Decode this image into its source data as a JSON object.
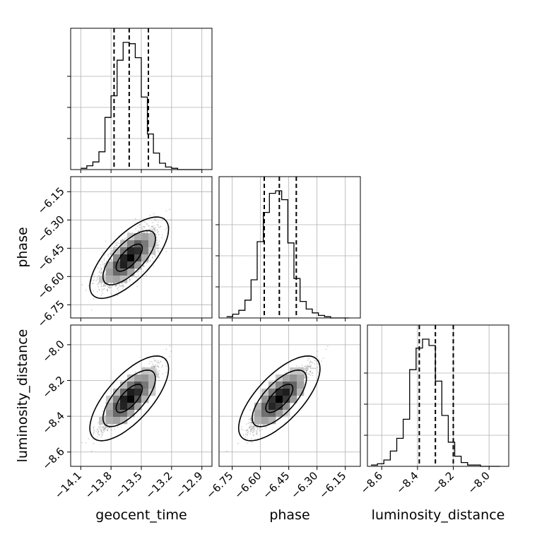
{
  "chart_data": {
    "type": "corner",
    "parameters": [
      {
        "name": "geocent_time",
        "label": "geocent_time",
        "range": [
          -14.2,
          -12.8
        ],
        "ticks": [
          -14.1,
          -13.8,
          -13.5,
          -13.2,
          -12.9
        ],
        "tick_labels": [
          "−14.1",
          "−13.8",
          "−13.5",
          "−13.2",
          "−12.9"
        ],
        "mean": -13.62,
        "sd": 0.13,
        "quantiles": [
          -13.77,
          -13.62,
          -13.43
        ]
      },
      {
        "name": "phase",
        "label": "phase",
        "range": [
          -6.82,
          -6.07
        ],
        "ticks": [
          -6.75,
          -6.6,
          -6.45,
          -6.3,
          -6.15
        ],
        "tick_labels": [
          "−6.75",
          "−6.60",
          "−6.45",
          "−6.30",
          "−6.15"
        ],
        "mean": -6.5,
        "sd": 0.072,
        "quantiles": [
          -6.58,
          -6.5,
          -6.41
        ]
      },
      {
        "name": "luminosity_distance",
        "label": "luminosity_distance",
        "range": [
          -8.68,
          -7.89
        ],
        "ticks": [
          -8.6,
          -8.4,
          -8.2,
          -8.0
        ],
        "tick_labels": [
          "−8.6",
          "−8.4",
          "−8.2",
          "−8.0"
        ],
        "mean": -8.3,
        "sd": 0.079,
        "quantiles": [
          -8.39,
          -8.3,
          -8.2
        ]
      }
    ],
    "histograms": [
      {
        "param": "geocent_time",
        "bin_edges_range": [
          -14.1,
          -12.9
        ],
        "counts": [
          1,
          3,
          6,
          14,
          41,
          58,
          86,
          100,
          99,
          88,
          57,
          28,
          13,
          5,
          2,
          1,
          0,
          0,
          0,
          0
        ]
      },
      {
        "param": "phase",
        "bin_edges_range": [
          -6.78,
          -6.13
        ],
        "counts": [
          1,
          3,
          6,
          14,
          30,
          60,
          83,
          98,
          100,
          93,
          59,
          31,
          13,
          7,
          4,
          2,
          1,
          0,
          0,
          0
        ]
      },
      {
        "param": "luminosity_distance",
        "bin_edges_range": [
          -8.66,
          -7.94
        ],
        "counts": [
          1,
          2,
          5,
          12,
          22,
          37,
          76,
          93,
          100,
          95,
          67,
          40,
          19,
          8,
          3,
          1,
          1,
          0,
          0,
          0
        ]
      }
    ],
    "correlations": {
      "phase|geocent_time": 0.7,
      "luminosity_distance|geocent_time": 0.7,
      "luminosity_distance|phase": 0.7
    },
    "contour_sigmas": [
      1,
      2,
      3
    ],
    "grid": true
  }
}
